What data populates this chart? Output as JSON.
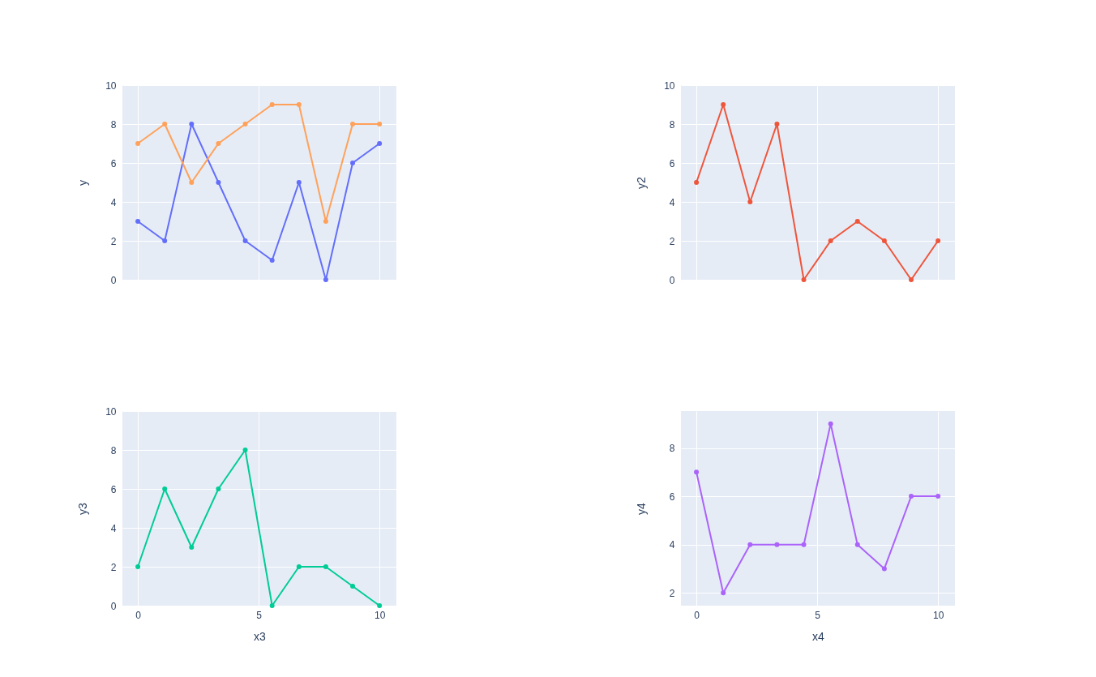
{
  "chart_data": [
    {
      "type": "line",
      "x": [
        0,
        1.111,
        2.222,
        3.333,
        4.444,
        5.556,
        6.667,
        7.778,
        8.889,
        10
      ],
      "ylabel": "y",
      "xlim": [
        -0.64,
        10.7
      ],
      "ylim": [
        0,
        10
      ],
      "xticks": [
        0,
        5,
        10
      ],
      "yticks": [
        0,
        2,
        4,
        6,
        8,
        10
      ],
      "tick_labels": "y",
      "grid": true,
      "marker": "circle",
      "line_style": "solid",
      "series": [
        {
          "color": "#636efa",
          "values": [
            3,
            2,
            8,
            5,
            2,
            1,
            5,
            0,
            6,
            7
          ]
        },
        {
          "color": "#ffa15a",
          "values": [
            7,
            8,
            5,
            7,
            8,
            9,
            9,
            3,
            8,
            8
          ]
        }
      ]
    },
    {
      "type": "line",
      "x": [
        0,
        1.111,
        2.222,
        3.333,
        4.444,
        5.556,
        6.667,
        7.778,
        8.889,
        10
      ],
      "ylabel": "y2",
      "xlim": [
        -0.64,
        10.7
      ],
      "ylim": [
        0,
        10
      ],
      "xticks": [
        0,
        5,
        10
      ],
      "yticks": [
        0,
        2,
        4,
        6,
        8,
        10
      ],
      "tick_labels": "y",
      "grid": true,
      "marker": "circle",
      "line_style": "solid",
      "series": [
        {
          "color": "#ef553b",
          "values": [
            5,
            9,
            4,
            8,
            0,
            2,
            3,
            2,
            0,
            2
          ]
        }
      ]
    },
    {
      "type": "line",
      "x": [
        0,
        1.111,
        2.222,
        3.333,
        4.444,
        5.556,
        6.667,
        7.778,
        8.889,
        10
      ],
      "xlabel": "x3",
      "ylabel": "y3",
      "xlim": [
        -0.64,
        10.7
      ],
      "ylim": [
        0,
        10
      ],
      "xticks": [
        0,
        5,
        10
      ],
      "yticks": [
        0,
        2,
        4,
        6,
        8,
        10
      ],
      "grid": true,
      "marker": "circle",
      "line_style": "solid",
      "series": [
        {
          "color": "#00cc96",
          "values": [
            2,
            6,
            3,
            6,
            8,
            0,
            2,
            2,
            1,
            0
          ]
        }
      ]
    },
    {
      "type": "line",
      "x": [
        0,
        1.111,
        2.222,
        3.333,
        4.444,
        5.556,
        6.667,
        7.778,
        8.889,
        10
      ],
      "xlabel": "x4",
      "ylabel": "y4",
      "xlim": [
        -0.64,
        10.7
      ],
      "ylim": [
        1.47,
        9.53
      ],
      "xticks": [
        0,
        5,
        10
      ],
      "yticks": [
        2,
        4,
        6,
        8
      ],
      "grid": true,
      "marker": "circle",
      "line_style": "solid",
      "series": [
        {
          "color": "#ab63fa",
          "values": [
            7,
            2,
            4,
            4,
            4,
            9,
            4,
            3,
            6,
            6
          ]
        }
      ]
    }
  ]
}
